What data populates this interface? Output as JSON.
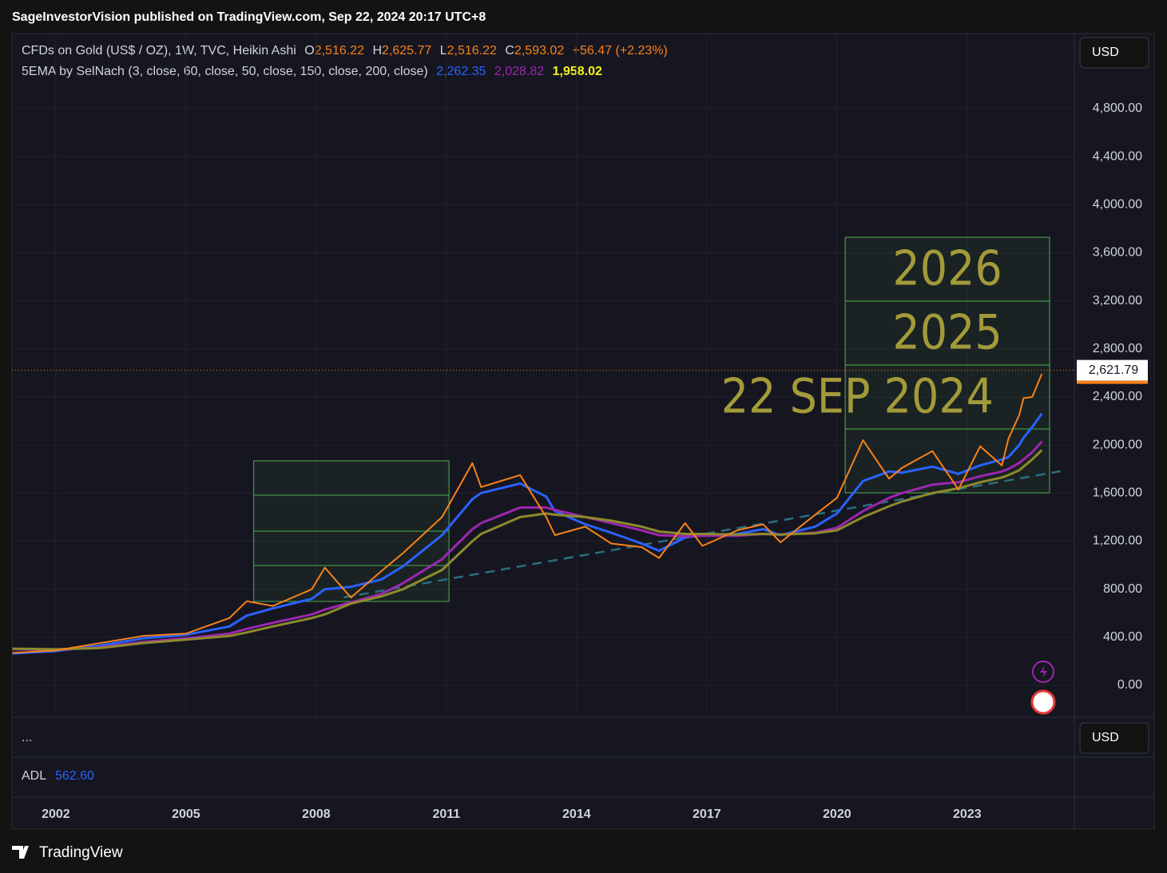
{
  "header": {
    "publisher": "SageInvestorVision published on TradingView.com, Sep 22, 2024 20:17 UTC+8",
    "symbol": "CFDs on Gold (US$ / OZ), 1W, TVC, Heikin Ashi",
    "o_label": "O",
    "o": "2,516.22",
    "h_label": "H",
    "h": "2,625.77",
    "l_label": "L",
    "l": "2,516.22",
    "c_label": "C",
    "c": "2,593.02",
    "change": "+56.47 (+2.23%)",
    "indicator": "5EMA by SelNach (3, close, 60, close, 50, close, 150, close, 200, close)",
    "ema_values": [
      "2,262.35",
      "2,028.82",
      "1,958.02"
    ],
    "currency": "USD",
    "pane_menu": "...",
    "currency2": "USD",
    "adl_label": "ADL",
    "adl_value": "562.60",
    "brand": "TradingView"
  },
  "chart_data": {
    "type": "line",
    "x": [
      2001.0,
      2002,
      2003,
      2004,
      2005,
      2006,
      2006.4,
      2007,
      2007.9,
      2008.2,
      2008.8,
      2009.5,
      2010,
      2010.9,
      2011.6,
      2011.8,
      2012.7,
      2013.3,
      2013.5,
      2014.2,
      2014.8,
      2015.5,
      2015.9,
      2016.5,
      2016.9,
      2017.7,
      2018.3,
      2018.7,
      2019.5,
      2020.0,
      2020.6,
      2021.2,
      2021.5,
      2022.2,
      2022.8,
      2023.3,
      2023.8,
      2023.95,
      2024.2,
      2024.3,
      2024.5,
      2024.72
    ],
    "series": [
      {
        "color": "#f7821b",
        "values": [
          270,
          290,
          350,
          410,
          430,
          560,
          700,
          660,
          800,
          980,
          730,
          950,
          1100,
          1400,
          1850,
          1650,
          1750,
          1400,
          1250,
          1320,
          1180,
          1150,
          1060,
          1350,
          1160,
          1290,
          1340,
          1190,
          1420,
          1560,
          2040,
          1720,
          1810,
          1950,
          1630,
          1990,
          1830,
          2050,
          2250,
          2390,
          2400,
          2593.02
        ]
      },
      {
        "color": "#2962ff",
        "values": [
          265,
          285,
          330,
          390,
          420,
          490,
          580,
          640,
          720,
          800,
          820,
          880,
          990,
          1250,
          1550,
          1600,
          1680,
          1570,
          1450,
          1340,
          1270,
          1180,
          1120,
          1230,
          1250,
          1260,
          1300,
          1250,
          1320,
          1430,
          1700,
          1780,
          1770,
          1820,
          1760,
          1830,
          1880,
          1900,
          2000,
          2060,
          2150,
          2262.35
        ]
      },
      {
        "color": "#9c27b0",
        "values": [
          300,
          295,
          315,
          360,
          390,
          430,
          470,
          520,
          590,
          630,
          690,
          760,
          850,
          1050,
          1300,
          1350,
          1480,
          1480,
          1460,
          1400,
          1350,
          1290,
          1250,
          1240,
          1245,
          1245,
          1260,
          1255,
          1270,
          1310,
          1450,
          1560,
          1600,
          1670,
          1690,
          1740,
          1780,
          1800,
          1850,
          1880,
          1940,
          2028.82
        ]
      },
      {
        "color": "#8d8a2c",
        "values": [
          305,
          300,
          310,
          350,
          380,
          410,
          440,
          490,
          560,
          590,
          680,
          740,
          800,
          960,
          1200,
          1260,
          1400,
          1430,
          1420,
          1400,
          1370,
          1320,
          1280,
          1260,
          1260,
          1255,
          1260,
          1255,
          1265,
          1290,
          1400,
          1490,
          1530,
          1600,
          1640,
          1690,
          1730,
          1750,
          1790,
          1820,
          1880,
          1958.02
        ]
      }
    ],
    "xlim": [
      2000.99,
      2025.47
    ],
    "xticks": [
      2002,
      2005,
      2008,
      2011,
      2014,
      2017,
      2020,
      2023
    ],
    "ylim": [
      -266,
      5425
    ],
    "yticks": [
      {
        "value": 0,
        "label": "0.00"
      },
      {
        "value": 400,
        "label": "400.00"
      },
      {
        "value": 800,
        "label": "800.00"
      },
      {
        "value": 1200,
        "label": "1,200.00"
      },
      {
        "value": 1600,
        "label": "1,600.00"
      },
      {
        "value": 2000,
        "label": "2,000.00"
      },
      {
        "value": 2400,
        "label": "2,400.00"
      },
      {
        "value": 2800,
        "label": "2,800.00"
      },
      {
        "value": 3200,
        "label": "3,200.00"
      },
      {
        "value": 3600,
        "label": "3,600.00"
      },
      {
        "value": 4000,
        "label": "4,000.00"
      },
      {
        "value": 4400,
        "label": "4,400.00"
      },
      {
        "value": 4800,
        "label": "4,800.00"
      }
    ],
    "grid": true,
    "last_price": {
      "value": 2621.79,
      "label": "2,621.79"
    },
    "trendline": {
      "x": [
        2008.63,
        2025.15
      ],
      "y": [
        731,
        1782
      ],
      "color": "#2a6f7f"
    },
    "boxes": [
      {
        "x": [
          2006.56,
          2011.06
        ],
        "levels": [
          698,
          997,
          1283,
          1582,
          1868
        ]
      },
      {
        "x": [
          2020.19,
          2024.9
        ],
        "levels": [
          1602,
          2134,
          2666,
          3198,
          3729
        ]
      }
    ],
    "box_labels": [
      "22 SEP 2024",
      "2025",
      "2026"
    ]
  }
}
